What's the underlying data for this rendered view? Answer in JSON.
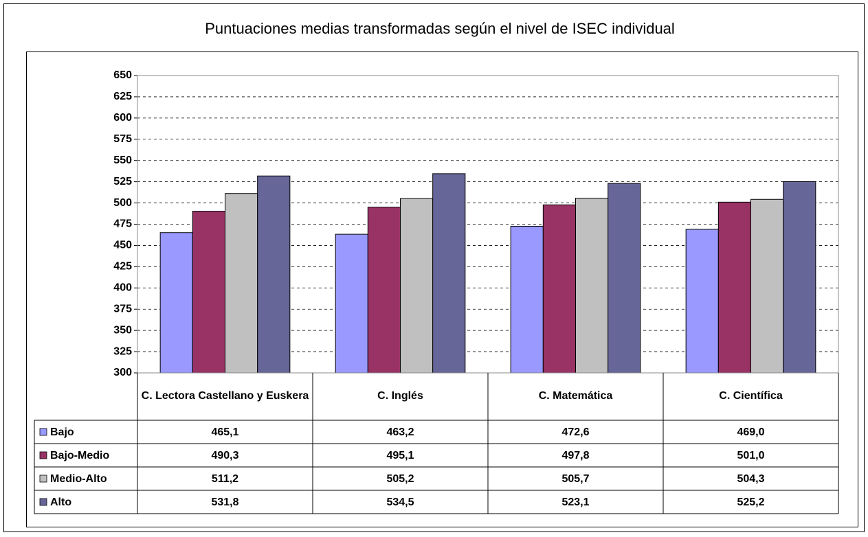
{
  "chart_data": {
    "type": "bar",
    "title": "Puntuaciones medias transformadas según el nivel de ISEC individual",
    "categories": [
      "C. Lectora Castellano y Euskera",
      "C. Inglés",
      "C. Matemática",
      "C. Científica"
    ],
    "series": [
      {
        "name": "Bajo",
        "color": "#9999ff",
        "values": [
          465.1,
          463.2,
          472.6,
          469.0
        ],
        "value_labels": [
          "465,1",
          "463,2",
          "472,6",
          "469,0"
        ]
      },
      {
        "name": "Bajo-Medio",
        "color": "#993366",
        "values": [
          490.3,
          495.1,
          497.8,
          501.0
        ],
        "value_labels": [
          "490,3",
          "495,1",
          "497,8",
          "501,0"
        ]
      },
      {
        "name": "Medio-Alto",
        "color": "#c0c0c0",
        "values": [
          511.2,
          505.2,
          505.7,
          504.3
        ],
        "value_labels": [
          "511,2",
          "505,2",
          "505,7",
          "504,3"
        ]
      },
      {
        "name": "Alto",
        "color": "#666699",
        "values": [
          531.8,
          534.5,
          523.1,
          525.2
        ],
        "value_labels": [
          "531,8",
          "534,5",
          "523,1",
          "525,2"
        ]
      }
    ],
    "ylim": [
      300,
      650
    ],
    "yticks": [
      300,
      325,
      350,
      375,
      400,
      425,
      450,
      475,
      500,
      525,
      550,
      575,
      600,
      625,
      650
    ],
    "grid": true
  }
}
